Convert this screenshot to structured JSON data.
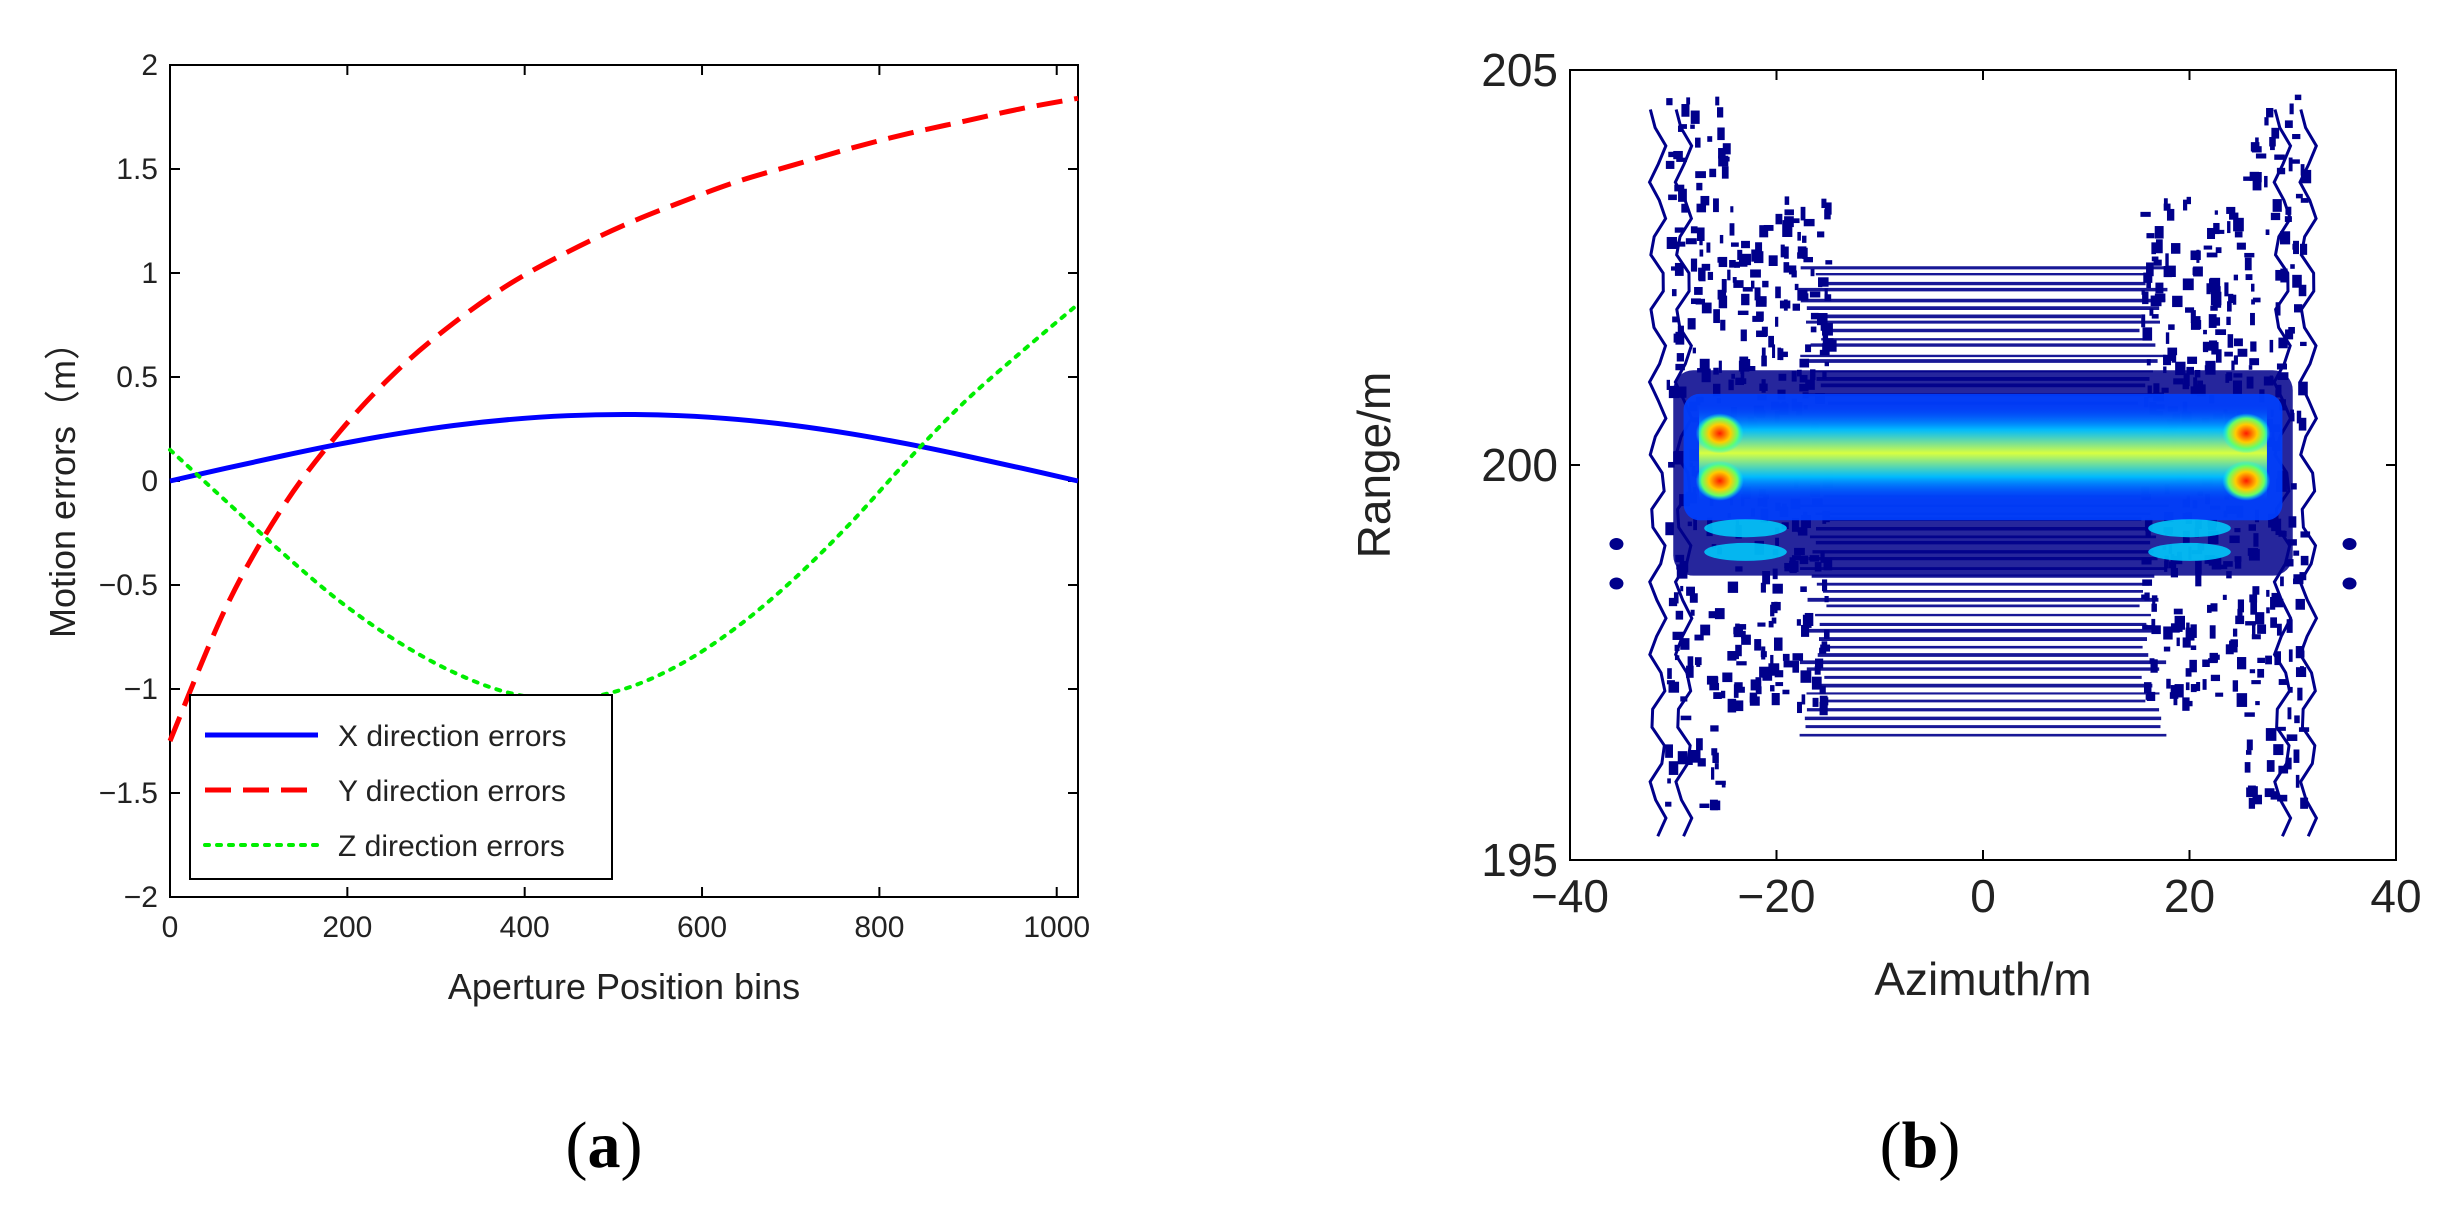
{
  "panels": [
    {
      "letter": "a"
    },
    {
      "letter": "b"
    }
  ],
  "chart_data": [
    {
      "type": "line",
      "title": "",
      "xlabel": "Aperture Position bins",
      "ylabel": "Motion errors（m）",
      "xlim": [
        0,
        1024
      ],
      "ylim": [
        -2,
        2
      ],
      "x_ticks": [
        0,
        200,
        400,
        600,
        800,
        1000
      ],
      "x_tick_labels": [
        "0",
        "200",
        "400",
        "600",
        "800",
        "1000"
      ],
      "y_ticks": [
        2,
        1.5,
        1,
        0.5,
        0,
        -0.5,
        -1,
        -1.5,
        -2
      ],
      "y_tick_labels": [
        "2",
        "1.5",
        "1",
        "0.5",
        "0",
        "−0.5",
        "−1",
        "−1.5",
        "−2"
      ],
      "grid": false,
      "legend_position": "bottom-left",
      "x": [
        0,
        64,
        128,
        192,
        256,
        320,
        384,
        448,
        512,
        576,
        640,
        704,
        768,
        832,
        896,
        960,
        1024
      ],
      "series": [
        {
          "name": "X direction errors",
          "color": "#0000ff",
          "style": "solid",
          "values": [
            0.0,
            0.062,
            0.122,
            0.178,
            0.227,
            0.267,
            0.296,
            0.314,
            0.32,
            0.314,
            0.296,
            0.267,
            0.227,
            0.178,
            0.122,
            0.062,
            0.0
          ]
        },
        {
          "name": "Y direction errors",
          "color": "#ff0000",
          "style": "dashed",
          "values": [
            -1.25,
            -0.6,
            -0.12,
            0.24,
            0.53,
            0.76,
            0.95,
            1.1,
            1.23,
            1.34,
            1.44,
            1.52,
            1.6,
            1.67,
            1.73,
            1.79,
            1.84
          ]
        },
        {
          "name": "Z direction errors",
          "color": "#00ee00",
          "style": "dotted",
          "values": [
            0.15,
            -0.1,
            -0.35,
            -0.58,
            -0.77,
            -0.92,
            -1.02,
            -1.05,
            -1.0,
            -0.88,
            -0.7,
            -0.47,
            -0.2,
            0.1,
            0.38,
            0.62,
            0.85
          ]
        }
      ]
    },
    {
      "type": "heatmap",
      "title": "",
      "xlabel": "Azimuth/m",
      "ylabel": "Range/m",
      "xlim": [
        -40,
        40
      ],
      "ylim": [
        195,
        205
      ],
      "x_ticks": [
        -40,
        -20,
        0,
        20,
        40
      ],
      "x_tick_labels": [
        "−40",
        "−20",
        "0",
        "20",
        "40"
      ],
      "y_ticks": [
        205,
        200,
        195
      ],
      "y_tick_labels": [
        "205",
        "200",
        "195"
      ],
      "grid": false,
      "colormap": "jet",
      "description_values": {
        "hot_spots": [
          {
            "x": -25.5,
            "y": 200.4
          },
          {
            "x": -25.5,
            "y": 199.8
          },
          {
            "x": 25.5,
            "y": 200.4
          },
          {
            "x": 25.5,
            "y": 199.8
          }
        ],
        "main_band": {
          "x_range": [
            -28,
            28
          ],
          "y_center": 200.2
        }
      },
      "colors": {
        "dark": "#00008b",
        "mid": "#0040ff",
        "cyan": "#00e5ff",
        "yellow": "#ffff00",
        "red": "#ff2000"
      }
    }
  ]
}
